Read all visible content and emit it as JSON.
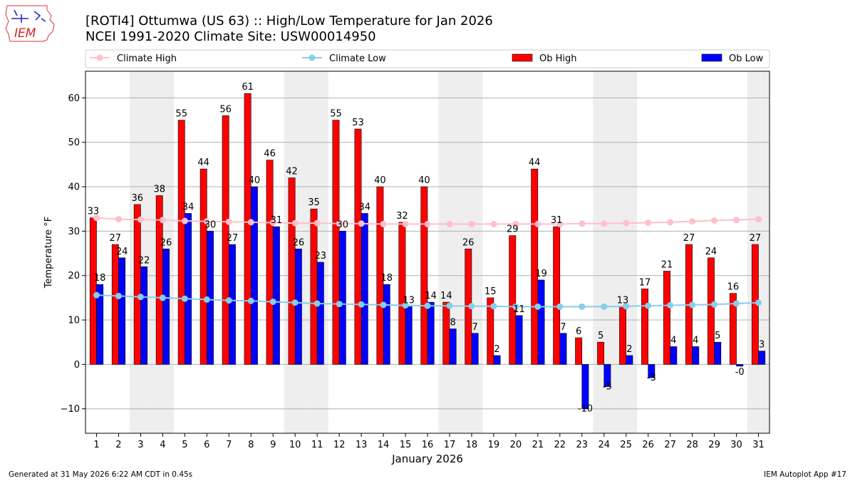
{
  "logo": {
    "text": "IEM"
  },
  "header": {
    "title": "[ROTI4] Ottumwa (US 63) :: High/Low Temperature for Jan 2026",
    "subtitle": "NCEI 1991-2020 Climate Site: USW00014950"
  },
  "footer": {
    "left": "Generated at 31 May 2026 6:22 AM CDT in 0.45s",
    "right": "IEM Autoplot App #17"
  },
  "legend": {
    "climate_high": "Climate High",
    "climate_low": "Climate Low",
    "ob_high": "Ob High",
    "ob_low": "Ob Low"
  },
  "chart_data": {
    "type": "bar",
    "xlabel": "January 2026",
    "ylabel": "Temperature °F",
    "ylim": [
      -15.5,
      66
    ],
    "yticks": [
      -10,
      0,
      10,
      20,
      30,
      40,
      50,
      60
    ],
    "grid": true,
    "legend_position": "top",
    "categories": [
      "1",
      "2",
      "3",
      "4",
      "5",
      "6",
      "7",
      "8",
      "9",
      "10",
      "11",
      "12",
      "13",
      "14",
      "15",
      "16",
      "17",
      "18",
      "19",
      "20",
      "21",
      "22",
      "23",
      "24",
      "25",
      "26",
      "27",
      "28",
      "29",
      "30",
      "31"
    ],
    "weekend_shaded_days": [
      3,
      4,
      10,
      11,
      17,
      18,
      24,
      25,
      31
    ],
    "series": [
      {
        "name": "Ob High",
        "kind": "bar",
        "color": "#ff0000",
        "values": [
          33,
          27,
          36,
          38,
          55,
          44,
          56,
          61,
          46,
          42,
          35,
          55,
          53,
          40,
          32,
          40,
          14,
          26,
          15,
          29,
          44,
          31,
          6,
          5,
          13,
          17,
          21,
          27,
          24,
          16,
          27
        ],
        "labels": [
          "33",
          "27",
          "36",
          "38",
          "55",
          "44",
          "56",
          "61",
          "46",
          "42",
          "35",
          "55",
          "53",
          "40",
          "32",
          "40",
          "14",
          "26",
          "15",
          "29",
          "44",
          "31",
          "6",
          "5",
          "13",
          "17",
          "21",
          "27",
          "24",
          "16",
          "27"
        ]
      },
      {
        "name": "Ob Low",
        "kind": "bar",
        "color": "#0000ff",
        "values": [
          18,
          24,
          22,
          26,
          34,
          30,
          27,
          40,
          31,
          26,
          23,
          30,
          34,
          18,
          13,
          14,
          8,
          7,
          2,
          11,
          19,
          7,
          -10,
          -5,
          2,
          -3,
          4,
          4,
          5,
          -0.4,
          3
        ],
        "labels": [
          "18",
          "24",
          "22",
          "26",
          "34",
          "30",
          "27",
          "40",
          "31",
          "26",
          "23",
          "30",
          "34",
          "18",
          "13",
          "14",
          "8",
          "7",
          "2",
          "11",
          "19",
          "7",
          "-10",
          "-5",
          "2",
          "-3",
          "4",
          "4",
          "5",
          "-0",
          "3"
        ]
      },
      {
        "name": "Climate High",
        "kind": "line",
        "color": "#ffc0cb",
        "values": [
          33,
          32.7,
          32.6,
          32.5,
          32.3,
          32.2,
          32.1,
          32,
          31.9,
          31.8,
          31.8,
          31.7,
          31.7,
          31.6,
          31.6,
          31.6,
          31.6,
          31.6,
          31.6,
          31.6,
          31.6,
          31.6,
          31.7,
          31.7,
          31.8,
          31.9,
          32,
          32.2,
          32.4,
          32.5,
          32.7
        ]
      },
      {
        "name": "Climate Low",
        "kind": "line",
        "color": "#87ceeb",
        "values": [
          15.6,
          15.4,
          15.2,
          15,
          14.8,
          14.6,
          14.4,
          14.3,
          14.1,
          13.9,
          13.7,
          13.6,
          13.5,
          13.4,
          13.3,
          13.2,
          13.2,
          13.1,
          13.1,
          13,
          13,
          13,
          13,
          13,
          13.1,
          13.2,
          13.3,
          13.4,
          13.5,
          13.7,
          13.9
        ]
      }
    ]
  }
}
